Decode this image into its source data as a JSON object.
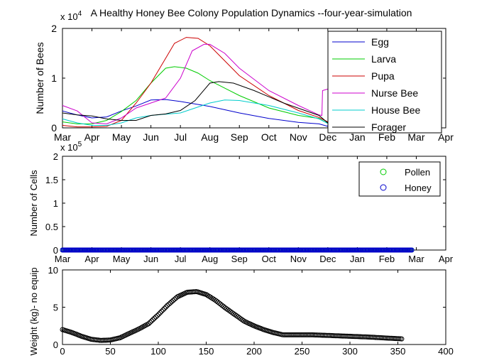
{
  "figure": {
    "title": "A Healthy Honey Bee Colony Population Dynamics --four-year-simulation"
  },
  "chart_data": [
    {
      "type": "line",
      "title": "A Healthy Honey Bee Colony Population Dynamics --four-year-simulation",
      "ylabel": "Number of Bees",
      "y_exponent": "x 10^4",
      "ylim": [
        0,
        20000
      ],
      "yticks": [
        0,
        1,
        2
      ],
      "xlim": [
        0,
        13
      ],
      "xticks": [
        "Mar",
        "Apr",
        "May",
        "Jun",
        "Jul",
        "Aug",
        "Sep",
        "Oct",
        "Nov",
        "Dec",
        "Jan",
        "Feb",
        "Mar",
        "Apr"
      ],
      "legend": "top-right",
      "series": [
        {
          "name": "Egg",
          "color": "#0000cc",
          "points": [
            [
              0,
              3400
            ],
            [
              0.5,
              2600
            ],
            [
              1,
              2000
            ],
            [
              1.5,
              2200
            ],
            [
              2,
              3400
            ],
            [
              2.5,
              4400
            ],
            [
              3,
              5600
            ],
            [
              3.5,
              5700
            ],
            [
              4,
              5300
            ],
            [
              5,
              4300
            ],
            [
              6,
              3000
            ],
            [
              7,
              1900
            ],
            [
              8,
              1100
            ],
            [
              8.7,
              800
            ],
            [
              9,
              300
            ],
            [
              10,
              200
            ],
            [
              11,
              100
            ],
            [
              12,
              0
            ]
          ]
        },
        {
          "name": "Larva",
          "color": "#00cc00",
          "points": [
            [
              0,
              1200
            ],
            [
              0.5,
              800
            ],
            [
              1,
              800
            ],
            [
              1.5,
              1500
            ],
            [
              2,
              3300
            ],
            [
              2.5,
              5500
            ],
            [
              3,
              9000
            ],
            [
              3.5,
              12000
            ],
            [
              3.8,
              12300
            ],
            [
              4.2,
              12000
            ],
            [
              4.6,
              11000
            ],
            [
              5,
              9500
            ],
            [
              6,
              6500
            ],
            [
              7,
              4000
            ],
            [
              8,
              2500
            ],
            [
              8.7,
              1900
            ],
            [
              9,
              900
            ],
            [
              10,
              500
            ],
            [
              11,
              200
            ],
            [
              12,
              0
            ]
          ]
        },
        {
          "name": "Pupa",
          "color": "#cc0000",
          "points": [
            [
              0,
              500
            ],
            [
              0.5,
              200
            ],
            [
              1,
              200
            ],
            [
              1.5,
              300
            ],
            [
              2,
              1500
            ],
            [
              2.5,
              5000
            ],
            [
              3,
              9000
            ],
            [
              3.5,
              14000
            ],
            [
              3.8,
              17000
            ],
            [
              4.2,
              18200
            ],
            [
              4.6,
              18000
            ],
            [
              5,
              16500
            ],
            [
              5.5,
              13500
            ],
            [
              6,
              10500
            ],
            [
              7,
              6500
            ],
            [
              8,
              3500
            ],
            [
              8.7,
              2100
            ],
            [
              9,
              1200
            ],
            [
              10,
              600
            ],
            [
              11,
              200
            ],
            [
              12,
              0
            ]
          ]
        },
        {
          "name": "Nurse Bee",
          "color": "#cc00cc",
          "points": [
            [
              0,
              4500
            ],
            [
              0.5,
              3400
            ],
            [
              1,
              1000
            ],
            [
              1.5,
              800
            ],
            [
              2,
              2000
            ],
            [
              2.5,
              4000
            ],
            [
              3,
              5000
            ],
            [
              3.5,
              6000
            ],
            [
              4,
              10000
            ],
            [
              4.4,
              15500
            ],
            [
              4.8,
              16800
            ],
            [
              5,
              16800
            ],
            [
              5.5,
              15000
            ],
            [
              6,
              12000
            ],
            [
              7,
              7500
            ],
            [
              8,
              4500
            ],
            [
              8.7,
              2600
            ],
            [
              8.8,
              2500
            ],
            [
              8.82,
              7500
            ],
            [
              9,
              7800
            ],
            [
              9.5,
              8000
            ],
            [
              10,
              8500
            ],
            [
              11,
              9000
            ],
            [
              12,
              9500
            ]
          ]
        },
        {
          "name": "House Bee",
          "color": "#00cccc",
          "points": [
            [
              0,
              1800
            ],
            [
              0.5,
              1000
            ],
            [
              1,
              500
            ],
            [
              1.5,
              500
            ],
            [
              2,
              1000
            ],
            [
              2.5,
              2000
            ],
            [
              3,
              2500
            ],
            [
              4,
              3000
            ],
            [
              5,
              5000
            ],
            [
              5.5,
              5600
            ],
            [
              6,
              5500
            ],
            [
              7,
              4500
            ],
            [
              8,
              3000
            ],
            [
              8.7,
              1800
            ],
            [
              9,
              900
            ],
            [
              10,
              600
            ],
            [
              11,
              300
            ],
            [
              12,
              100
            ]
          ]
        },
        {
          "name": "Forager",
          "color": "#000000",
          "points": [
            [
              0,
              3000
            ],
            [
              0.5,
              2600
            ],
            [
              1,
              2400
            ],
            [
              1.5,
              1800
            ],
            [
              2,
              1500
            ],
            [
              2.5,
              1500
            ],
            [
              3,
              2500
            ],
            [
              3.5,
              2800
            ],
            [
              4,
              3500
            ],
            [
              4.5,
              5500
            ],
            [
              5,
              9000
            ],
            [
              5.3,
              9300
            ],
            [
              5.8,
              9000
            ],
            [
              6.5,
              7500
            ],
            [
              7.5,
              5000
            ],
            [
              8.7,
              2500
            ],
            [
              9,
              1000
            ],
            [
              10,
              500
            ],
            [
              11,
              300
            ],
            [
              12,
              100
            ]
          ]
        }
      ]
    },
    {
      "type": "scatter",
      "ylabel": "Number of Cells",
      "y_exponent": "x 10^5",
      "ylim": [
        0,
        200000
      ],
      "yticks": [
        "0",
        "0.5",
        "1",
        "1.5",
        "2"
      ],
      "xlim": [
        0,
        13
      ],
      "xticks": [
        "Mar",
        "Apr",
        "May",
        "Jun",
        "Jul",
        "Aug",
        "Sep",
        "Oct",
        "Nov",
        "Dec",
        "Jan",
        "Feb",
        "Mar",
        "Apr"
      ],
      "legend": "top-right",
      "series": [
        {
          "name": "Pollen",
          "color": "#00cc00",
          "x_range": [
            0,
            11.85
          ],
          "y": 0
        },
        {
          "name": "Honey",
          "color": "#0000cc",
          "x_range": [
            0,
            11.85
          ],
          "y": 0
        }
      ]
    },
    {
      "type": "scatter",
      "ylabel": "Weight (kg)- no equip",
      "ylim": [
        0,
        10
      ],
      "yticks": [
        "0",
        "5",
        "10"
      ],
      "xlim": [
        0,
        400
      ],
      "xticks": [
        "0",
        "50",
        "100",
        "150",
        "200",
        "250",
        "300",
        "350",
        "400"
      ],
      "color": "#000000",
      "points": [
        [
          0,
          2.0
        ],
        [
          10,
          1.6
        ],
        [
          20,
          1.1
        ],
        [
          30,
          0.7
        ],
        [
          40,
          0.55
        ],
        [
          50,
          0.6
        ],
        [
          60,
          0.9
        ],
        [
          70,
          1.5
        ],
        [
          80,
          2.1
        ],
        [
          90,
          2.8
        ],
        [
          100,
          4.0
        ],
        [
          110,
          5.3
        ],
        [
          120,
          6.4
        ],
        [
          130,
          7.0
        ],
        [
          140,
          7.1
        ],
        [
          150,
          6.7
        ],
        [
          160,
          5.9
        ],
        [
          170,
          4.9
        ],
        [
          180,
          4.0
        ],
        [
          190,
          3.1
        ],
        [
          200,
          2.5
        ],
        [
          210,
          2.0
        ],
        [
          220,
          1.6
        ],
        [
          230,
          1.3
        ],
        [
          240,
          1.3
        ],
        [
          260,
          1.3
        ],
        [
          280,
          1.2
        ],
        [
          300,
          1.1
        ],
        [
          320,
          1.0
        ],
        [
          340,
          0.85
        ],
        [
          355,
          0.75
        ]
      ]
    }
  ]
}
